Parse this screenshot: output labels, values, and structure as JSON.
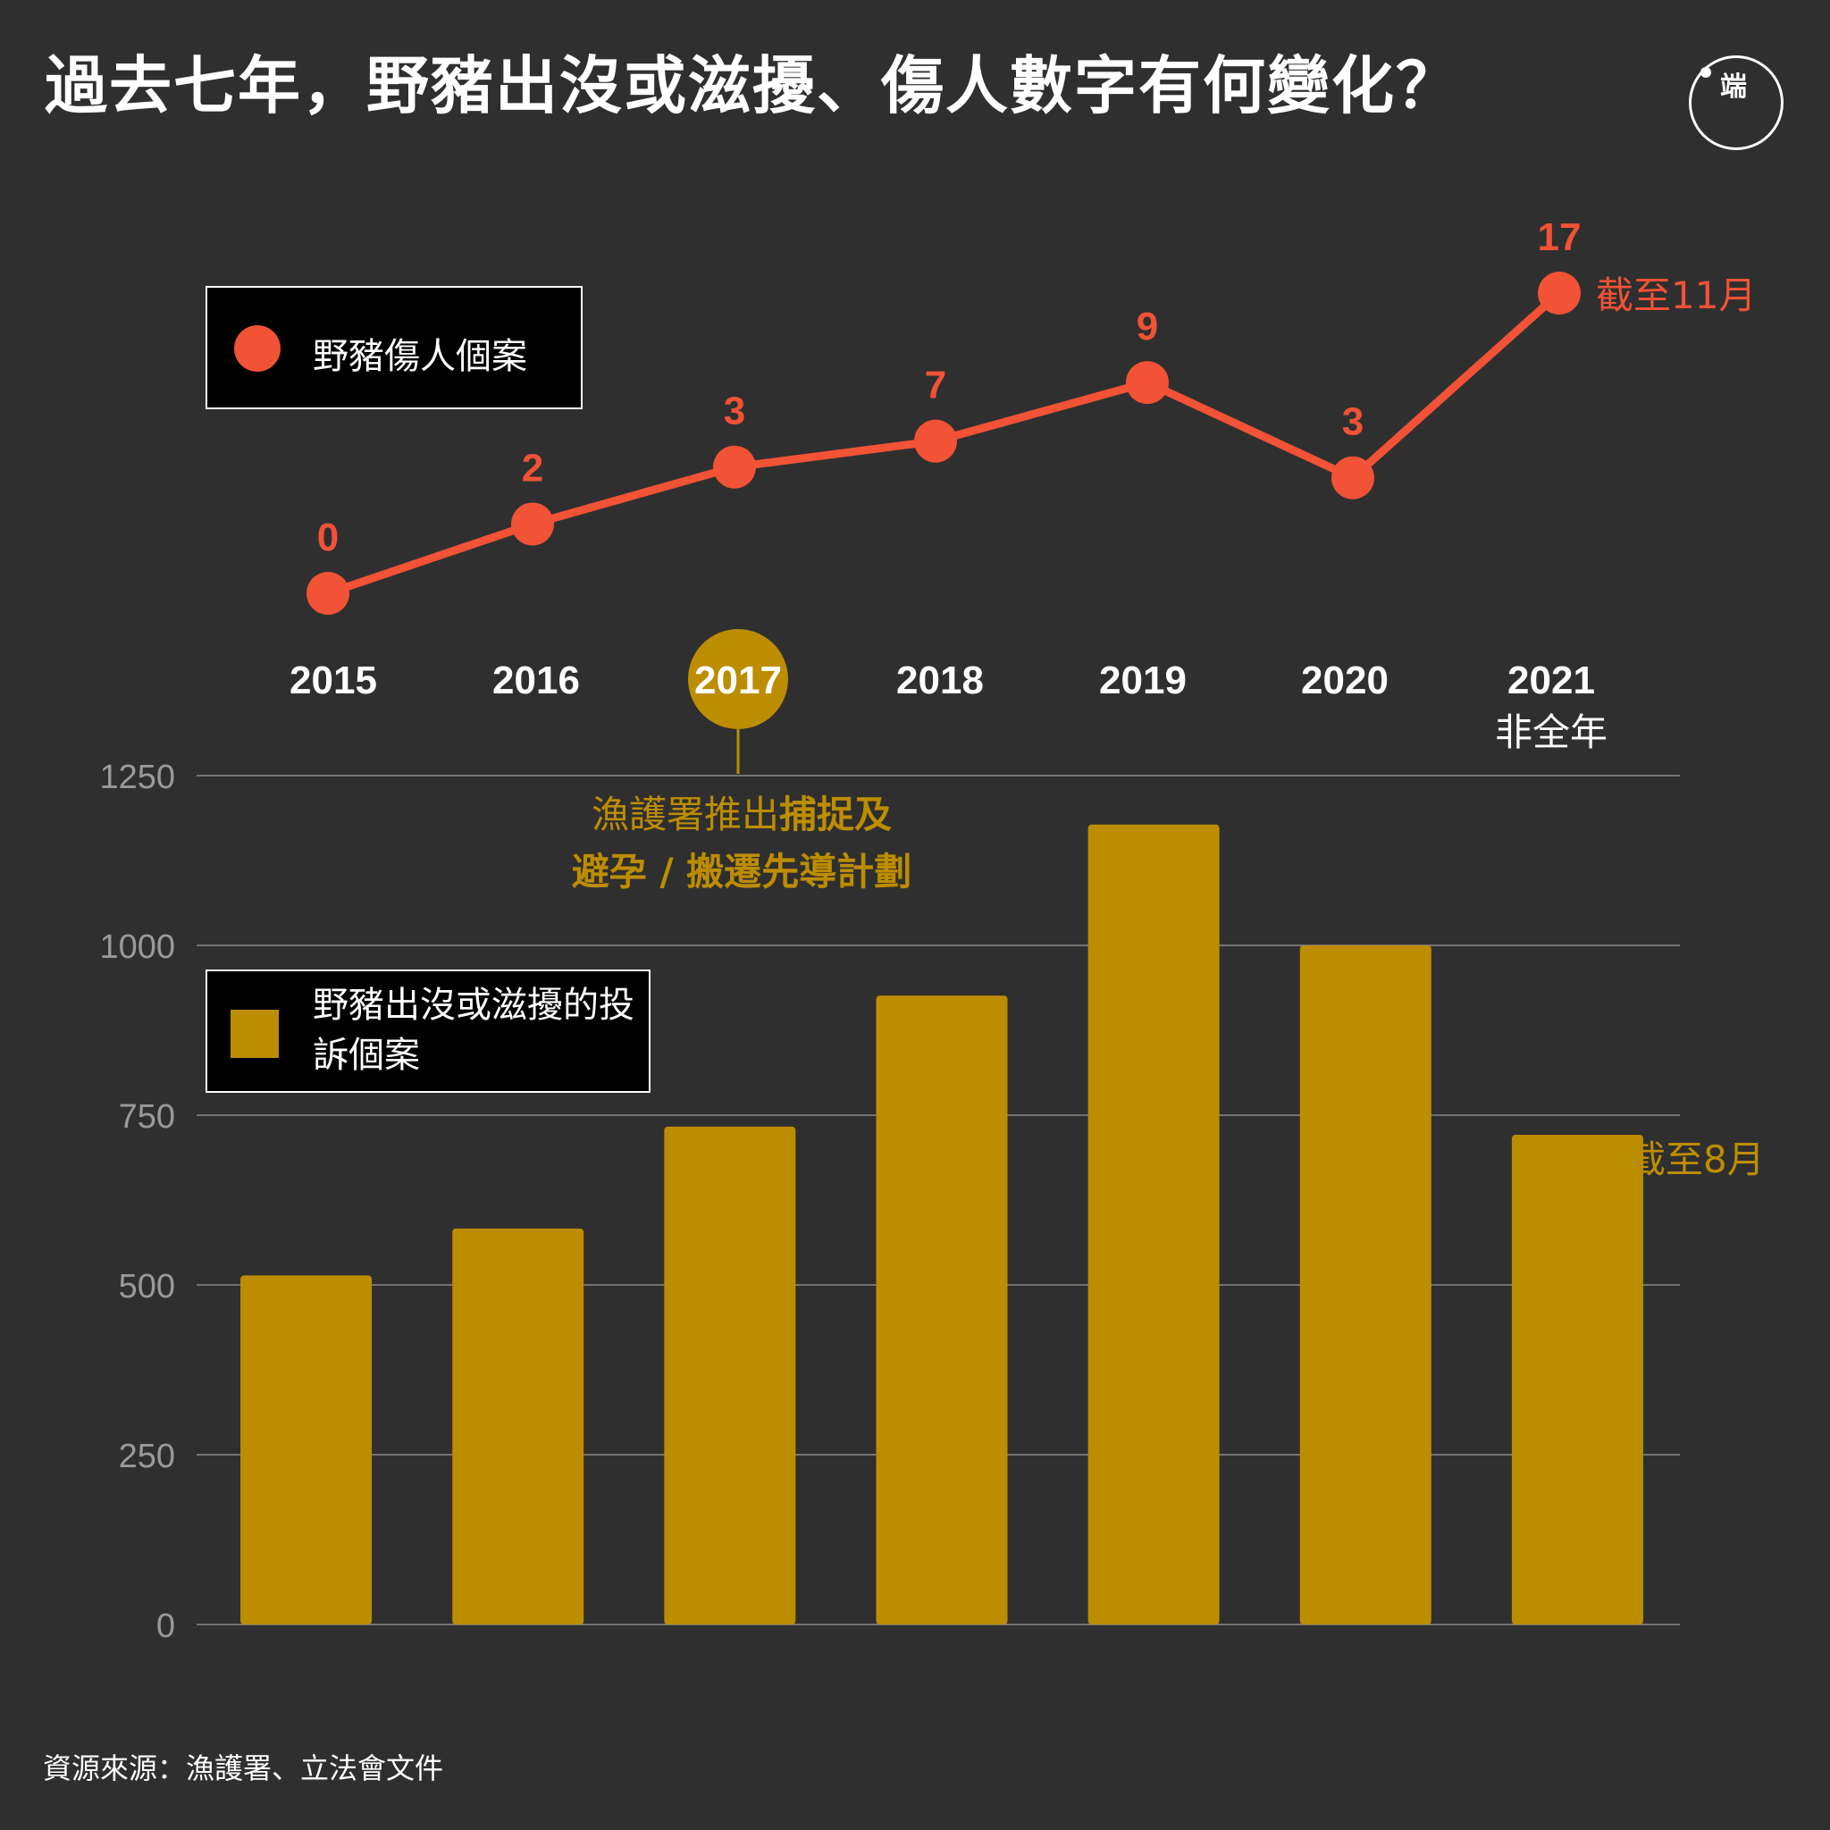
{
  "title": "過去七年，野豬出沒或滋擾、傷人數字有何變化？",
  "logo_text": "端",
  "source": "資源來源：漁護署、立法會文件",
  "colors": {
    "background": "#2f2f2f",
    "line": "#f25235",
    "bar": "#bd8d00",
    "grid": "#8a8a8a",
    "text": "#ffffff"
  },
  "legend_line_label": "野豬傷人個案",
  "legend_bar_label": "野豬出沒或滋擾的投訴個案",
  "highlight_year": "2017",
  "note": {
    "line1_regular": "漁護署推出",
    "line1_bold": "捕捉及",
    "line2_bold": "避孕 / 搬遷先導計劃"
  },
  "line_annotation": "截至11月",
  "bar_annotation": "截至8月",
  "year_sublabel_2021": "非全年",
  "chart_data": [
    {
      "type": "line",
      "x": [
        "2015",
        "2016",
        "2017",
        "2018",
        "2019",
        "2020",
        "2021"
      ],
      "series": [
        {
          "name": "野豬傷人個案",
          "values": [
            0,
            2,
            3,
            7,
            9,
            3,
            17
          ]
        }
      ]
    },
    {
      "type": "bar",
      "categories": [
        "2015",
        "2016",
        "2017",
        "2018",
        "2019",
        "2020",
        "2021"
      ],
      "series": [
        {
          "name": "野豬出沒或滋擾的投訴個案",
          "values": [
            514,
            583,
            733,
            926,
            1178,
            1000,
            721
          ]
        }
      ],
      "ylim": [
        0,
        1250
      ],
      "yticks": [
        0,
        250,
        500,
        750,
        1000,
        1250
      ],
      "grid": true
    }
  ]
}
